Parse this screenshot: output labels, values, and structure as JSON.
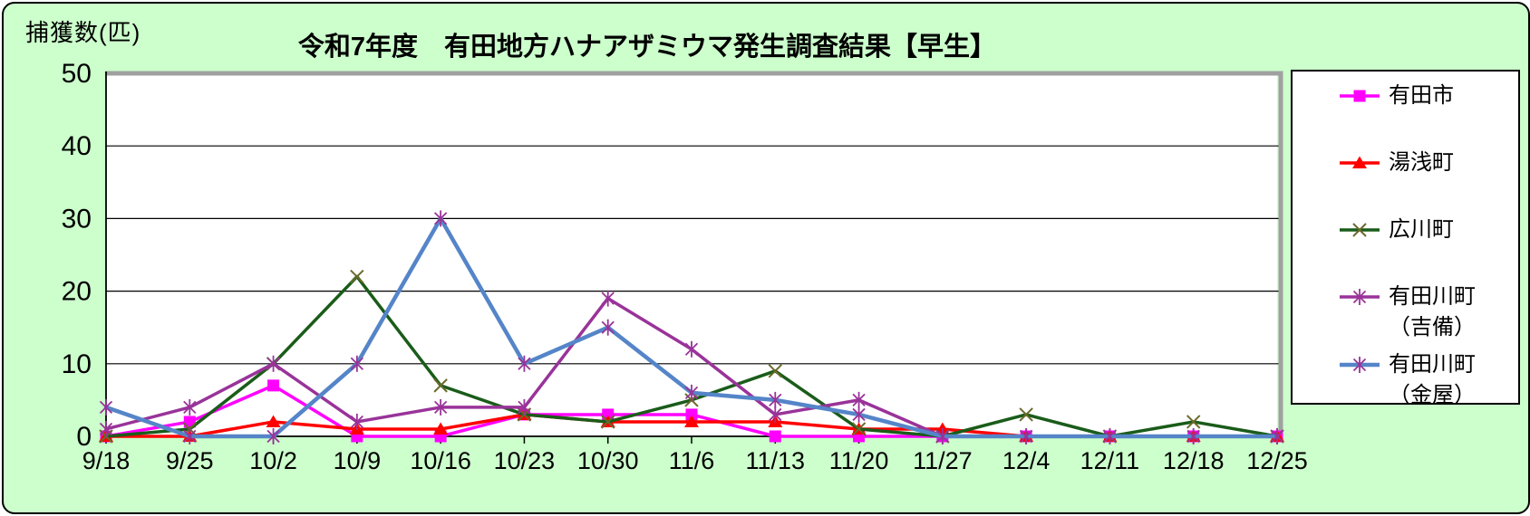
{
  "window": {
    "background_color": "#ccffcc",
    "plot_background_color": "#ffffff"
  },
  "header": {
    "title": "令和7年度　有田地方ハナアザミウマ発生調査結果【早生】",
    "y_axis_unit_label": "捕獲数(匹)"
  },
  "chart_data": {
    "type": "line",
    "title": "令和7年度　有田地方ハナアザミウマ発生調査結果【早生】",
    "xlabel": "",
    "ylabel": "捕獲数(匹)",
    "ylim": [
      0,
      50
    ],
    "yticks": [
      0,
      10,
      20,
      30,
      40,
      50
    ],
    "grid": "horizontal",
    "legend_position": "right",
    "categories": [
      "9/18",
      "9/25",
      "10/2",
      "10/9",
      "10/16",
      "10/23",
      "10/30",
      "11/6",
      "11/13",
      "11/20",
      "11/27",
      "12/4",
      "12/11",
      "12/18",
      "12/25"
    ],
    "series": [
      {
        "name": "有田市",
        "legend_lines": [
          "有田市"
        ],
        "color": "#ff00ff",
        "marker": "square",
        "marker_color": "#ff00ff",
        "line_width": 3.5,
        "values": [
          0,
          2,
          7,
          0,
          0,
          3,
          3,
          3,
          0,
          0,
          0,
          0,
          0,
          0,
          0
        ]
      },
      {
        "name": "湯浅町",
        "legend_lines": [
          "湯浅町"
        ],
        "color": "#ff0000",
        "marker": "triangle",
        "marker_color": "#ff0000",
        "line_width": 3.5,
        "values": [
          0,
          0,
          2,
          1,
          1,
          3,
          2,
          2,
          2,
          1,
          1,
          0,
          0,
          0,
          0
        ]
      },
      {
        "name": "広川町",
        "legend_lines": [
          "広川町"
        ],
        "color": "#1a5c1a",
        "marker": "x",
        "marker_color": "#6a6a2a",
        "line_width": 3.5,
        "values": [
          0,
          1,
          10,
          22,
          7,
          3,
          2,
          5,
          9,
          1,
          0,
          3,
          0,
          2,
          0
        ]
      },
      {
        "name": "有田川町（吉備）",
        "legend_lines": [
          "有田川町",
          "（吉備）"
        ],
        "color": "#993399",
        "marker": "asterisk",
        "marker_color": "#993399",
        "line_width": 3.5,
        "values": [
          1,
          4,
          10,
          2,
          4,
          4,
          19,
          12,
          3,
          5,
          0,
          0,
          0,
          0,
          0
        ]
      },
      {
        "name": "有田川町（金屋）",
        "legend_lines": [
          "有田川町",
          "（金屋）"
        ],
        "color": "#5585c8",
        "marker": "asterisk",
        "marker_color": "#993399",
        "line_width": 4.5,
        "values": [
          4,
          0,
          0,
          10,
          30,
          10,
          15,
          6,
          5,
          3,
          0,
          0,
          0,
          0,
          0
        ]
      }
    ]
  }
}
